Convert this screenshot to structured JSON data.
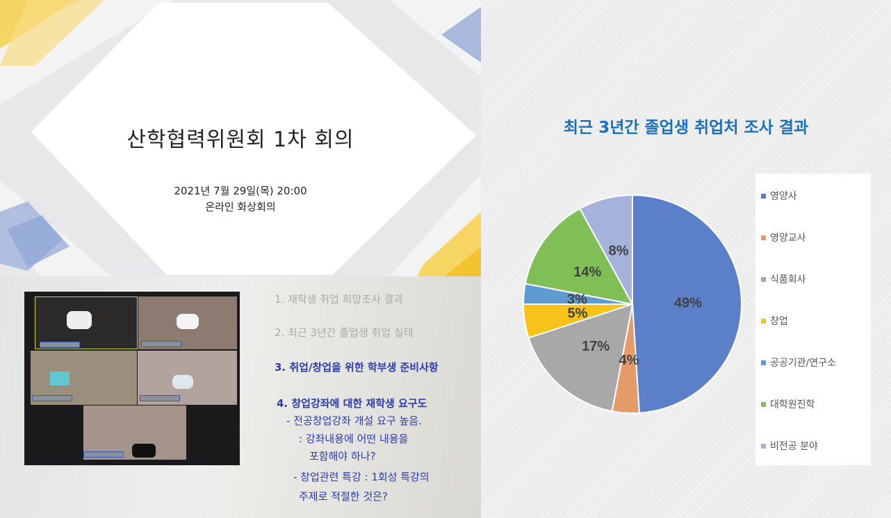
{
  "slide": {
    "title": "산학협력위원회 1차 회의",
    "date": "2021년 7월 29일(목)  20:00",
    "location": "온라인 화상회의"
  },
  "agenda": {
    "items": [
      "1. 재학생 취업 희망조사 결과",
      "2. 최근 3년간 졸업생 취업 실태",
      "3. 취업/창업을 위한 학부생 준비사항",
      "4. 창업강좌에 대한 재학생 요구도",
      "- 전공창업강좌 개설 요구 높음.",
      ": 강좌내용에 어떤 내용을",
      "포함해야 하나?",
      "- 창업관련 특강 : 1회성 특강의",
      "주제로 적절한 것은?"
    ]
  },
  "chart_data": {
    "type": "pie",
    "title": "최근 3년간 졸업생 취업처 조사 결과",
    "categories": [
      "영양사",
      "영양교사",
      "식품회사",
      "창업",
      "공공기관/연구소",
      "대학원진학",
      "비전공 분야"
    ],
    "values": [
      49,
      4,
      17,
      5,
      3,
      14,
      8
    ],
    "labels": [
      "49%",
      "4%",
      "17%",
      "5%",
      "3%",
      "14%",
      "8%"
    ],
    "colors": [
      "#5b7fc8",
      "#e59a6a",
      "#a8a8a8",
      "#f7c21a",
      "#5f9bd0",
      "#7fbf55",
      "#a4b2dc"
    ],
    "legend": "right"
  }
}
